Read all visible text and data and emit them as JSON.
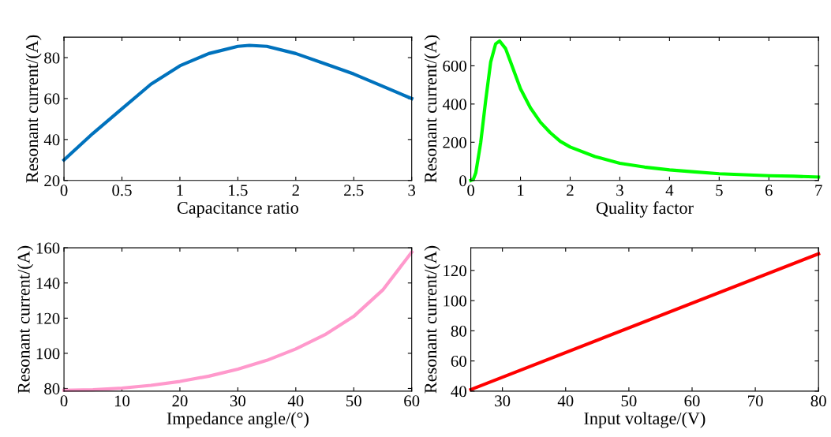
{
  "chart_data": [
    {
      "type": "line",
      "xlabel": "Capacitance ratio",
      "ylabel": "Resonant current/(A)",
      "xlim": [
        0,
        3
      ],
      "ylim": [
        20,
        90
      ],
      "xticks": [
        0,
        0.5,
        1,
        1.5,
        2,
        2.5,
        3
      ],
      "yticks": [
        20,
        40,
        60,
        80
      ],
      "x": [
        0,
        0.25,
        0.5,
        0.75,
        1,
        1.25,
        1.5,
        1.6,
        1.75,
        2,
        2.25,
        2.5,
        2.75,
        3
      ],
      "series": [
        {
          "color": "#0072bd",
          "values": [
            30,
            43,
            55,
            67,
            76,
            82,
            85.5,
            86,
            85.5,
            82,
            77,
            72,
            66,
            60
          ]
        }
      ]
    },
    {
      "type": "line",
      "xlabel": "Quality factor",
      "ylabel": "Resonant current/(A)",
      "xlim": [
        0,
        7
      ],
      "ylim": [
        0,
        750
      ],
      "xticks": [
        0,
        1,
        2,
        3,
        4,
        5,
        6,
        7
      ],
      "yticks": [
        0,
        200,
        400,
        600
      ],
      "x": [
        0,
        0.05,
        0.1,
        0.2,
        0.3,
        0.4,
        0.5,
        0.58,
        0.7,
        0.8,
        1,
        1.2,
        1.4,
        1.6,
        1.8,
        2,
        2.5,
        3,
        3.5,
        4,
        4.5,
        5,
        5.5,
        6,
        6.5,
        7
      ],
      "series": [
        {
          "color": "#00ff00",
          "values": [
            0,
            5,
            40,
            200,
            420,
            620,
            715,
            730,
            690,
            620,
            480,
            380,
            305,
            250,
            205,
            175,
            125,
            90,
            70,
            55,
            45,
            35,
            30,
            25,
            22,
            18
          ]
        }
      ]
    },
    {
      "type": "line",
      "xlabel": "Impedance angle/(°)",
      "ylabel": "Resonant current/(A)",
      "xlim": [
        0,
        60
      ],
      "ylim": [
        78.5,
        160
      ],
      "xticks": [
        0,
        10,
        20,
        30,
        40,
        50,
        60
      ],
      "yticks": [
        80,
        100,
        120,
        140,
        160
      ],
      "x": [
        0,
        5,
        10,
        15,
        20,
        25,
        30,
        35,
        40,
        45,
        50,
        55,
        60
      ],
      "series": [
        {
          "color": "#ff99cc",
          "values": [
            79,
            79.3,
            80.2,
            81.8,
            84,
            87,
            91,
            96,
            102.5,
            110.5,
            121,
            136,
            157.5
          ]
        }
      ]
    },
    {
      "type": "line",
      "xlabel": "Input voltage/(V)",
      "ylabel": "Resonant current/(A)",
      "xlim": [
        25,
        80
      ],
      "ylim": [
        40,
        135
      ],
      "xticks": [
        30,
        40,
        50,
        60,
        70,
        80
      ],
      "yticks": [
        40,
        60,
        80,
        100,
        120
      ],
      "x": [
        25,
        80
      ],
      "series": [
        {
          "color": "#ff0000",
          "values": [
            41,
            131
          ]
        }
      ]
    }
  ]
}
